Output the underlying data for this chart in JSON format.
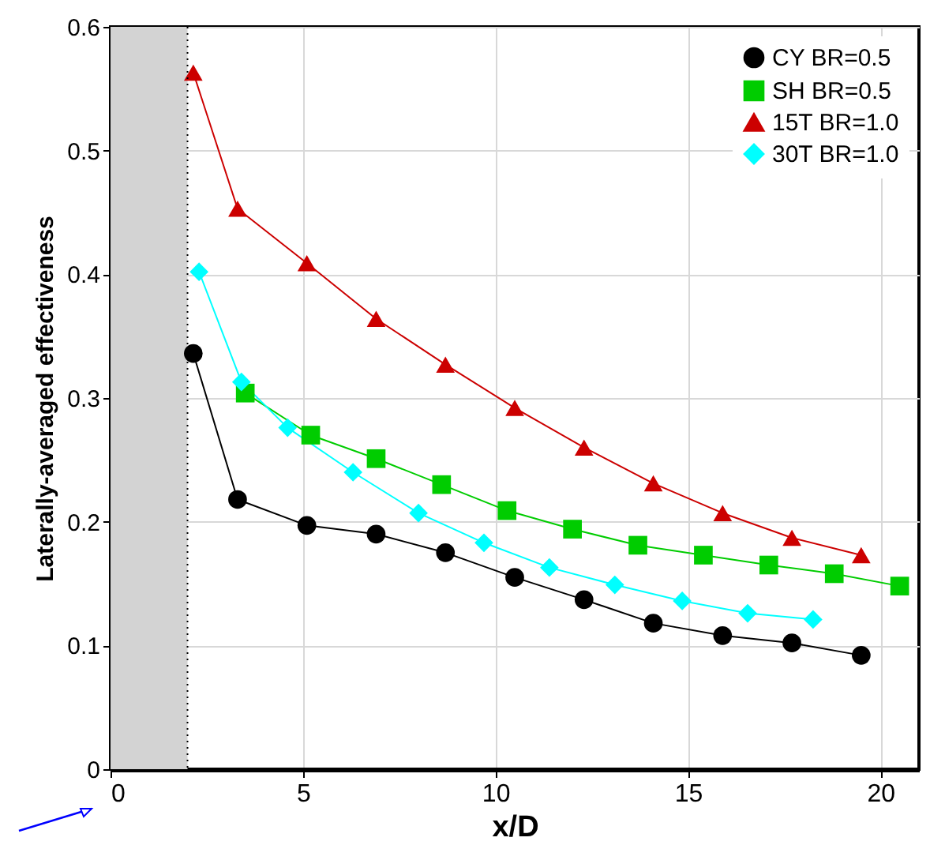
{
  "chart_data": {
    "type": "line",
    "xlabel": "x/D",
    "ylabel": "Laterally-averaged effectiveness",
    "xlim": [
      0,
      21
    ],
    "ylim": [
      0,
      0.6
    ],
    "xticks": [
      0,
      5,
      10,
      15,
      20
    ],
    "yticks": [
      0,
      0.1,
      0.2,
      0.3,
      0.4,
      0.5,
      0.6
    ],
    "grid": true,
    "legend": "top right",
    "line_style": "solid",
    "bands": [
      {
        "axis": "x",
        "from": 0,
        "to": 2,
        "color": "#d3d3d3"
      }
    ],
    "ref_lines": [
      {
        "axis": "x",
        "value": 2,
        "color": "#000000",
        "line_style": "dotted"
      }
    ],
    "series": [
      {
        "name": "CY BR=0.5",
        "color": "#000000",
        "marker": "circle",
        "x": [
          2.15,
          3.3,
          5.1,
          6.9,
          8.7,
          10.5,
          12.3,
          14.1,
          15.9,
          17.7,
          19.5
        ],
        "values": [
          0.336,
          0.218,
          0.197,
          0.19,
          0.175,
          0.155,
          0.137,
          0.118,
          0.108,
          0.102,
          0.092
        ]
      },
      {
        "name": "SH BR=0.5",
        "color": "#00cc00",
        "marker": "square",
        "x": [
          3.5,
          5.2,
          6.9,
          8.6,
          10.3,
          12,
          13.7,
          15.4,
          17.1,
          18.8,
          20.5
        ],
        "values": [
          0.304,
          0.27,
          0.251,
          0.23,
          0.209,
          0.194,
          0.181,
          0.173,
          0.165,
          0.158,
          0.148
        ]
      },
      {
        "name": "15T BR=1.0",
        "color": "#cc0000",
        "marker": "triangle",
        "x": [
          2.15,
          3.3,
          5.1,
          6.9,
          8.7,
          10.5,
          12.3,
          14.1,
          15.9,
          17.7,
          19.5
        ],
        "values": [
          0.563,
          0.453,
          0.409,
          0.364,
          0.327,
          0.292,
          0.26,
          0.231,
          0.207,
          0.187,
          0.173
        ]
      },
      {
        "name": "30T BR=1.0",
        "color": "#00ffff",
        "marker": "diamond",
        "x": [
          2.3,
          3.4,
          4.6,
          6.3,
          8,
          9.7,
          11.4,
          13.1,
          14.85,
          16.55,
          18.25
        ],
        "values": [
          0.402,
          0.313,
          0.276,
          0.24,
          0.207,
          0.183,
          0.163,
          0.149,
          0.136,
          0.126,
          0.121
        ]
      }
    ]
  }
}
